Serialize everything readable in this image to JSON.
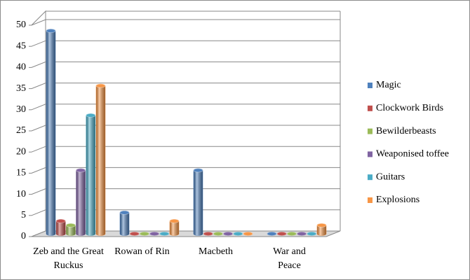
{
  "chart_data": {
    "type": "bar",
    "categories": [
      "Zeb and the Great Ruckus",
      "Rowan of Rin",
      "Macbeth",
      "War and Peace"
    ],
    "series": [
      {
        "name": "Magic",
        "color": "#4f81bd",
        "values": [
          48,
          5,
          15,
          0
        ]
      },
      {
        "name": "Clockwork Birds",
        "color": "#c0504d",
        "values": [
          3,
          0,
          0,
          0
        ]
      },
      {
        "name": "Bewilderbeasts",
        "color": "#9bbb59",
        "values": [
          2,
          0,
          0,
          0
        ]
      },
      {
        "name": "Weaponised toffee",
        "color": "#8064a2",
        "values": [
          15,
          0,
          0,
          0
        ]
      },
      {
        "name": "Guitars",
        "color": "#4bacc6",
        "values": [
          28,
          0,
          0,
          0
        ]
      },
      {
        "name": "Explosions",
        "color": "#f79646",
        "values": [
          35,
          3,
          0,
          2
        ]
      }
    ],
    "ylim": [
      0,
      50
    ],
    "yticks": [
      0,
      5,
      10,
      15,
      20,
      25,
      30,
      35,
      40,
      45,
      50
    ],
    "grid": true,
    "legend": "right"
  }
}
